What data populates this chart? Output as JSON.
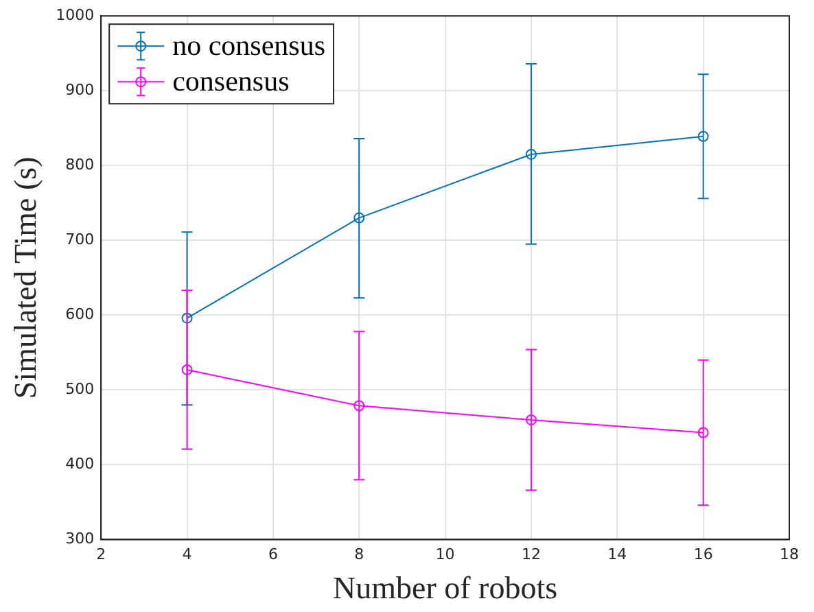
{
  "chart_data": {
    "type": "line",
    "xlabel": "Number of robots",
    "ylabel": "Simulated Time (s)",
    "x": [
      4,
      8,
      12,
      16
    ],
    "series": [
      {
        "name": "no consensus",
        "color": "#0072bd",
        "values": [
          596,
          730,
          815,
          839
        ],
        "errors": [
          [
            480,
            711
          ],
          [
            623,
            836
          ],
          [
            695,
            936
          ],
          [
            756,
            922
          ]
        ]
      },
      {
        "name": "consensus",
        "color": "#ff00ff",
        "values": [
          527,
          479,
          460,
          443
        ],
        "errors": [
          [
            421,
            633
          ],
          [
            380,
            578
          ],
          [
            366,
            554
          ],
          [
            346,
            540
          ]
        ]
      }
    ],
    "xlim": [
      2,
      18
    ],
    "xticks": [
      2,
      4,
      6,
      8,
      10,
      12,
      14,
      16,
      18
    ],
    "ylim": [
      300,
      1000
    ],
    "yticks": [
      300,
      400,
      500,
      600,
      700,
      800,
      900,
      1000
    ],
    "grid": true,
    "legend": "top left",
    "marker": "circle",
    "line_style": "solid"
  }
}
